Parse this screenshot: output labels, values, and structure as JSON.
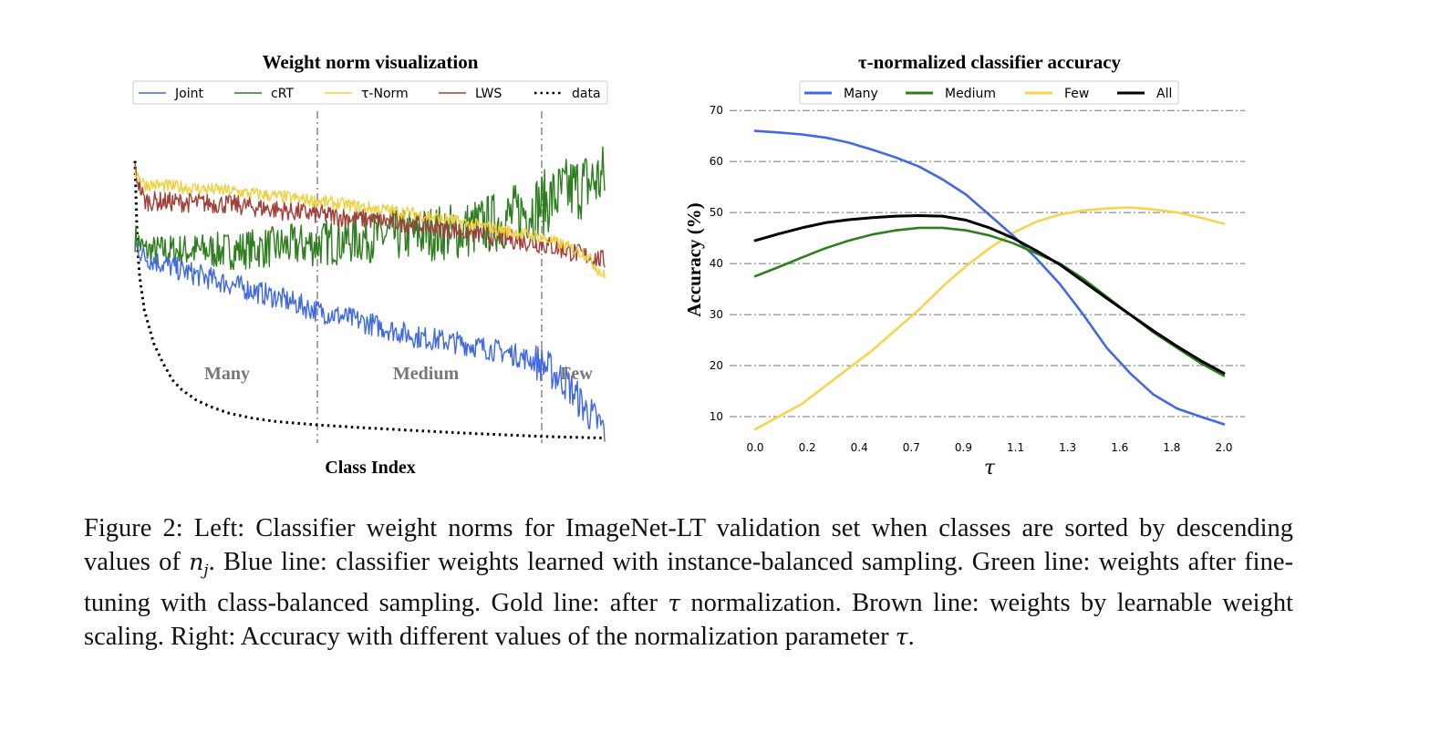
{
  "left_chart": {
    "title": "Weight norm visualization",
    "xlabel": "Class Index",
    "legend": [
      "Joint",
      "cRT",
      "τ-Norm",
      "LWS",
      "data"
    ],
    "regions": [
      "Many",
      "Medium",
      "Few"
    ]
  },
  "right_chart": {
    "title": "τ-normalized classifier accuracy",
    "xlabel": "τ",
    "ylabel": "Accuracy (%)",
    "legend": [
      "Many",
      "Medium",
      "Few",
      "All"
    ]
  },
  "caption": {
    "p1": "Figure 2: Left: Classifier weight norms for ImageNet-LT validation set when classes are sorted by descending values of ",
    "nj_sym": "n",
    "nj_sub": "j",
    "p2": ". Blue line: classifier weights learned with instance-balanced sampling. Green line: weights after fine-tuning with class-balanced sampling. Gold line: after ",
    "tau1": "τ",
    "p3": " normalization. Brown line: weights by learnable weight scaling.  Right:  Accuracy with different values of the normalization parameter ",
    "tau2": "τ",
    "p4": "."
  },
  "chart_data": [
    {
      "type": "line",
      "title": "Weight norm visualization",
      "xlabel": "Class Index",
      "ylabel": "",
      "grid": false,
      "legend_position": "top",
      "x_range": [
        0,
        1000
      ],
      "region_boundaries": [
        385,
        865
      ],
      "regions": [
        "Many",
        "Medium",
        "Few"
      ],
      "series": [
        {
          "name": "Joint",
          "color": "#4169e1",
          "x": [
            0,
            20,
            100,
            200,
            300,
            385,
            500,
            600,
            700,
            800,
            865,
            920,
            960,
            1000
          ],
          "y": [
            0.6,
            0.56,
            0.52,
            0.48,
            0.44,
            0.4,
            0.36,
            0.32,
            0.3,
            0.27,
            0.24,
            0.18,
            0.1,
            0.04
          ]
        },
        {
          "name": "cRT",
          "color": "#2e7d1f",
          "x": [
            0,
            20,
            200,
            385,
            500,
            700,
            780,
            865,
            920,
            1000
          ],
          "y": [
            0.62,
            0.58,
            0.58,
            0.6,
            0.62,
            0.64,
            0.67,
            0.72,
            0.76,
            0.8
          ]
        },
        {
          "name": "τ-Norm",
          "color": "#f0d040",
          "x": [
            0,
            20,
            200,
            385,
            600,
            865,
            960,
            1000
          ],
          "y": [
            0.82,
            0.78,
            0.76,
            0.73,
            0.69,
            0.62,
            0.57,
            0.5
          ]
        },
        {
          "name": "LWS",
          "color": "#a0403a",
          "x": [
            0,
            20,
            200,
            385,
            600,
            865,
            1000
          ],
          "y": [
            0.82,
            0.73,
            0.72,
            0.69,
            0.66,
            0.6,
            0.55
          ]
        },
        {
          "name": "data",
          "color": "#000000",
          "style": "dotted",
          "x": [
            0,
            3,
            5,
            10,
            20,
            40,
            60,
            80,
            100,
            130,
            160,
            200,
            250,
            300,
            385,
            500,
            700,
            865,
            1000
          ],
          "y": [
            0.85,
            0.7,
            0.6,
            0.5,
            0.4,
            0.3,
            0.24,
            0.19,
            0.16,
            0.13,
            0.11,
            0.09,
            0.075,
            0.065,
            0.055,
            0.045,
            0.03,
            0.02,
            0.015
          ]
        }
      ]
    },
    {
      "type": "line",
      "title": "τ-normalized classifier accuracy",
      "xlabel": "τ",
      "ylabel": "Accuracy (%)",
      "grid": true,
      "legend_position": "top",
      "xlim": [
        0,
        2.0
      ],
      "ylim": [
        5,
        72
      ],
      "x_tick_labels": [
        "0.0",
        "0.2",
        "0.4",
        "0.7",
        "0.9",
        "1.1",
        "1.3",
        "1.6",
        "1.8",
        "2.0"
      ],
      "y_ticks": [
        10,
        20,
        30,
        40,
        50,
        60,
        70
      ],
      "x": [
        0.0,
        0.1,
        0.2,
        0.3,
        0.4,
        0.5,
        0.6,
        0.7,
        0.8,
        0.9,
        1.0,
        1.1,
        1.2,
        1.3,
        1.4,
        1.5,
        1.6,
        1.7,
        1.8,
        1.9,
        2.0
      ],
      "series": [
        {
          "name": "Many",
          "color": "#4169e1",
          "values": [
            66.0,
            65.7,
            65.3,
            64.7,
            63.7,
            62.3,
            60.8,
            59.0,
            56.5,
            53.5,
            49.5,
            45.5,
            41.0,
            36.0,
            30.0,
            23.5,
            18.5,
            14.3,
            11.6,
            10.0,
            8.5
          ]
        },
        {
          "name": "Medium",
          "color": "#2e7d1f",
          "values": [
            37.5,
            39.3,
            41.2,
            43.0,
            44.5,
            45.7,
            46.5,
            47.0,
            47.0,
            46.5,
            45.5,
            44.0,
            42.0,
            40.0,
            37.0,
            33.5,
            30.0,
            26.5,
            23.5,
            20.5,
            18.0
          ]
        },
        {
          "name": "Few",
          "color": "#f5d54e",
          "values": [
            7.5,
            10.0,
            12.5,
            16.0,
            19.5,
            23.0,
            27.0,
            31.0,
            35.5,
            39.5,
            43.0,
            46.0,
            48.2,
            49.6,
            50.4,
            50.8,
            51.0,
            50.6,
            50.0,
            49.0,
            47.8
          ]
        },
        {
          "name": "All",
          "color": "#000000",
          "values": [
            44.5,
            45.8,
            47.0,
            48.0,
            48.6,
            49.0,
            49.3,
            49.4,
            49.3,
            48.5,
            47.0,
            45.0,
            42.5,
            39.8,
            36.5,
            33.2,
            30.0,
            26.8,
            23.8,
            21.0,
            18.5
          ]
        }
      ]
    }
  ]
}
